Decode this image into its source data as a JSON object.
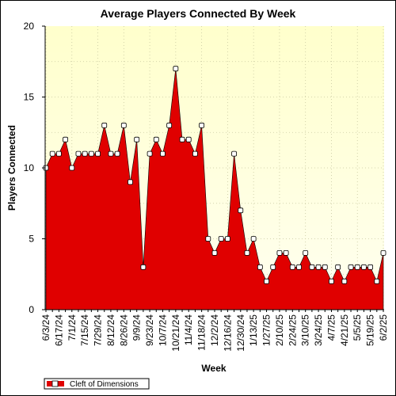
{
  "chart_data": {
    "type": "area",
    "title": "Average Players Connected By Week",
    "xlabel": "Week",
    "ylabel": "Players Connected",
    "ylim": [
      0,
      20
    ],
    "yticks": [
      0,
      5,
      10,
      15,
      20
    ],
    "grid": true,
    "legend_position": "bottom-left",
    "x": [
      "6/3/24",
      "6/10/24",
      "6/17/24",
      "6/24/24",
      "7/1/24",
      "7/8/24",
      "7/15/24",
      "7/22/24",
      "7/29/24",
      "8/5/24",
      "8/12/24",
      "8/19/24",
      "8/26/24",
      "9/2/24",
      "9/9/24",
      "9/16/24",
      "9/23/24",
      "9/30/24",
      "10/7/24",
      "10/14/24",
      "10/21/24",
      "10/28/24",
      "11/4/24",
      "11/11/24",
      "11/18/24",
      "11/25/24",
      "12/2/24",
      "12/9/24",
      "12/16/24",
      "12/23/24",
      "12/30/24",
      "1/6/25",
      "1/13/25",
      "1/20/25",
      "1/27/25",
      "2/3/25",
      "2/10/25",
      "2/17/25",
      "2/24/25",
      "3/3/25",
      "3/10/25",
      "3/17/25",
      "3/24/25",
      "3/31/25",
      "4/7/25",
      "4/14/25",
      "4/21/25",
      "4/28/25",
      "5/5/25",
      "5/12/25",
      "5/19/25",
      "5/26/25",
      "6/2/25"
    ],
    "xtick_labels": [
      "6/3/24",
      "6/17/24",
      "7/1/24",
      "7/15/24",
      "7/29/24",
      "8/12/24",
      "8/26/24",
      "9/9/24",
      "9/23/24",
      "10/7/24",
      "10/21/24",
      "11/4/24",
      "11/18/24",
      "12/2/24",
      "12/16/24",
      "12/30/24",
      "1/13/25",
      "1/27/25",
      "2/10/25",
      "2/24/25",
      "3/10/25",
      "3/24/25",
      "4/7/25",
      "4/21/25",
      "5/5/25",
      "5/19/25",
      "6/2/25"
    ],
    "series": [
      {
        "name": "Cleft of Dimensions",
        "color": "#e00000",
        "values": [
          10,
          11,
          11,
          12,
          10,
          11,
          11,
          11,
          11,
          13,
          11,
          11,
          13,
          9,
          12,
          3,
          11,
          12,
          11,
          13,
          17,
          12,
          12,
          11,
          13,
          5,
          4,
          5,
          5,
          11,
          7,
          4,
          5,
          3,
          2,
          3,
          4,
          4,
          3,
          3,
          4,
          3,
          3,
          3,
          2,
          3,
          2,
          3,
          3,
          3,
          3,
          2,
          4
        ]
      }
    ],
    "colors": {
      "plot_background_top": "#ffffcc",
      "plot_background_bottom": "#fffff0",
      "grid": "#c8c8a0",
      "fill": "#e00000",
      "marker_fill": "#ffffff"
    }
  }
}
